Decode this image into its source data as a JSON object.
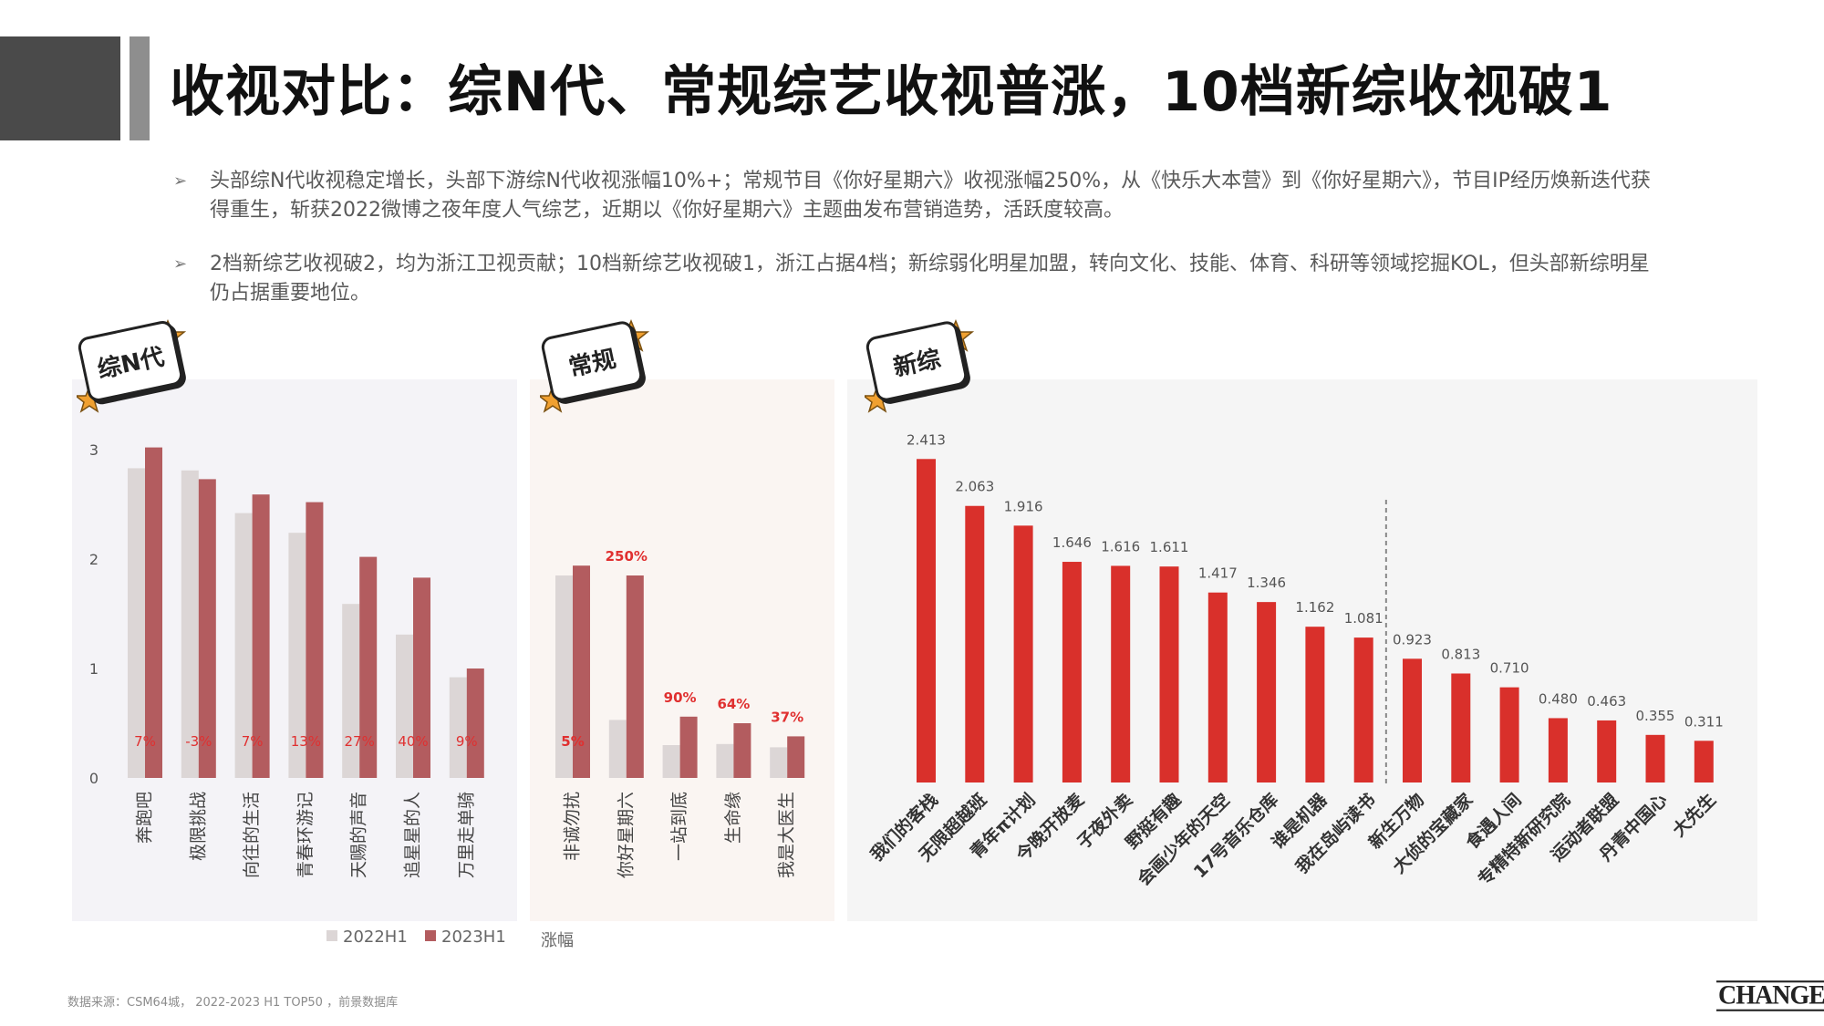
{
  "header": {
    "title": "收视对比：综N代、常规综艺收视普涨，10档新综收视破1"
  },
  "bullets": [
    {
      "text": "头部综N代收视稳定增长，头部下游综N代收视涨幅10%+；常规节目《你好星期六》收视涨幅250%，从《快乐大本营》到《你好星期六》，节目IP经历焕新迭代获得重生，斩获2022微博之夜年度人气综艺，近期以《你好星期六》主题曲发布营销造势，活跃度较高。"
    },
    {
      "text": "2档新综艺收视破2，均为浙江卫视贡献；10档新综艺收视破1，浙江占据4档；新综弱化明星加盟，转向文化、技能、体育、科研等领域挖掘KOL，但头部新综明星仍占据重要地位。"
    }
  ],
  "colors": {
    "y2022": "#dcd6d6",
    "y2023": "#b35c5f",
    "new_bar": "#d9302b",
    "growth_label": "#e03030",
    "panel_left_bg": "#f4f3f7",
    "panel_mid_bg": "#faf5f2",
    "panel_right_bg": "#f5f5f5"
  },
  "badges": {
    "left": "综N代",
    "middle": "常规",
    "right": "新综"
  },
  "legend": {
    "y2022": "2022H1",
    "y2023": "2023H1",
    "growth": "涨幅"
  },
  "chart_data": [
    {
      "type": "bar",
      "name_badge": "综N代",
      "categories": [
        "奔跑吧",
        "极限挑战",
        "向往的生活",
        "青春环游记",
        "天赐的声音",
        "追星星的人",
        "万里走单骑"
      ],
      "series": [
        {
          "name": "2022H1",
          "values": [
            2.83,
            2.81,
            2.42,
            2.24,
            1.59,
            1.31,
            0.92
          ]
        },
        {
          "name": "2023H1",
          "values": [
            3.02,
            2.73,
            2.59,
            2.52,
            2.02,
            1.83,
            1.0
          ]
        }
      ],
      "growth_labels": [
        "7%",
        "-3%",
        "7%",
        "13%",
        "27%",
        "40%",
        "9%"
      ],
      "yticks": [
        "0",
        "1",
        "2",
        "3"
      ],
      "ylim": [
        0,
        3.2
      ]
    },
    {
      "type": "bar",
      "name_badge": "常规",
      "categories": [
        "非诚勿扰",
        "你好星期六",
        "一站到底",
        "生命缘",
        "我是大医生"
      ],
      "series": [
        {
          "name": "2022H1",
          "values": [
            1.85,
            0.53,
            0.3,
            0.31,
            0.28
          ]
        },
        {
          "name": "2023H1",
          "values": [
            1.94,
            1.85,
            0.56,
            0.5,
            0.38
          ]
        }
      ],
      "growth_labels": [
        "5%",
        "250%",
        "90%",
        "64%",
        "37%"
      ],
      "ylim": [
        0,
        3.2
      ]
    },
    {
      "type": "bar",
      "name_badge": "新综",
      "categories": [
        "我们的客栈",
        "无限超越班",
        "青年π计划",
        "今晚开放麦",
        "子夜外卖",
        "野挺有趣",
        "会画少年的天空",
        "17号音乐仓库",
        "谁是机器",
        "我在岛屿读书",
        "新生万物",
        "大侦的宝藏家",
        "食遇人间",
        "专精特新研究院",
        "运动者联盟",
        "丹青中国心",
        "大先生"
      ],
      "values": [
        2.413,
        2.063,
        1.916,
        1.646,
        1.616,
        1.611,
        1.417,
        1.346,
        1.162,
        1.081,
        0.923,
        0.813,
        0.71,
        0.48,
        0.463,
        0.355,
        0.311
      ],
      "labels": [
        "2.413",
        "2.063",
        "1.916",
        "1.646",
        "1.616",
        "1.611",
        "1.417",
        "1.346",
        "1.162",
        "1.081",
        "0.923",
        "0.813",
        "0.710",
        "0.480",
        "0.463",
        "0.355",
        "0.311"
      ],
      "divider_after_index": 9,
      "ylim": [
        0,
        2.6
      ]
    }
  ],
  "footer": {
    "source": "数据来源：CSM64城，  2022-2023 H1 TOP50 ，前景数据库",
    "logo": "CHANGEMO"
  }
}
